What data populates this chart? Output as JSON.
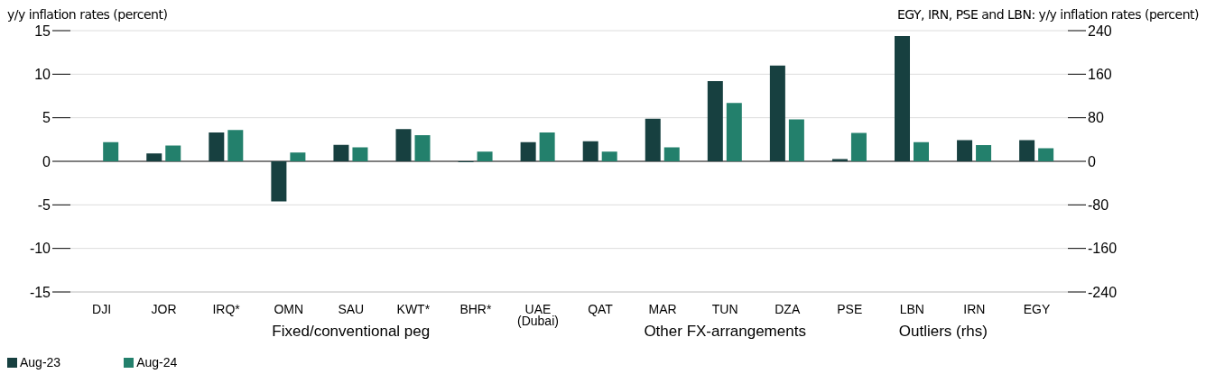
{
  "chart_data": {
    "type": "bar",
    "ylabel": "y/y inflation rates (percent)",
    "y2label": "EGY, IRN, PSE and LBN: y/y inflation rates (percent)",
    "categories": [
      "DJI",
      "JOR",
      "IRQ*",
      "OMN",
      "SAU",
      "KWT*",
      "BHR*",
      "UAE\n(Dubai)",
      "QAT",
      "MAR",
      "TUN",
      "DZA",
      "PSE",
      "LBN",
      "IRN",
      "EGY"
    ],
    "series": [
      {
        "name": "Aug-23",
        "color": "#174040",
        "values": [
          null,
          0.9,
          3.3,
          -4.6,
          1.9,
          3.7,
          -0.1,
          2.2,
          2.3,
          4.9,
          9.2,
          11.0,
          null,
          null,
          null,
          null
        ]
      },
      {
        "name": "Aug-24",
        "color": "#23806c",
        "values": [
          2.2,
          1.8,
          3.6,
          1.0,
          1.6,
          3.0,
          1.1,
          3.3,
          1.1,
          1.6,
          6.7,
          4.8,
          null,
          null,
          null,
          null
        ]
      },
      {
        "color": "#174040",
        "axis": "y2",
        "values": [
          null,
          null,
          null,
          null,
          null,
          null,
          null,
          null,
          null,
          null,
          null,
          null,
          4,
          230,
          39,
          39
        ]
      },
      {
        "color": "#23806c",
        "axis": "y2",
        "values": [
          null,
          null,
          null,
          null,
          null,
          null,
          null,
          null,
          null,
          null,
          null,
          null,
          52,
          35,
          30,
          24
        ]
      }
    ],
    "ylim": [
      -15,
      15
    ],
    "yticks": [
      -15,
      -10,
      -5,
      0,
      5,
      10,
      15
    ],
    "y2lim": [
      -240,
      240
    ],
    "y2ticks": [
      -240,
      -160,
      -80,
      0,
      80,
      160,
      240
    ],
    "grid": "y",
    "legend": "bottom left",
    "annotations": [
      "Fixed/conventional peg",
      "Other FX-arrangements",
      "Outliers (rhs)"
    ]
  }
}
